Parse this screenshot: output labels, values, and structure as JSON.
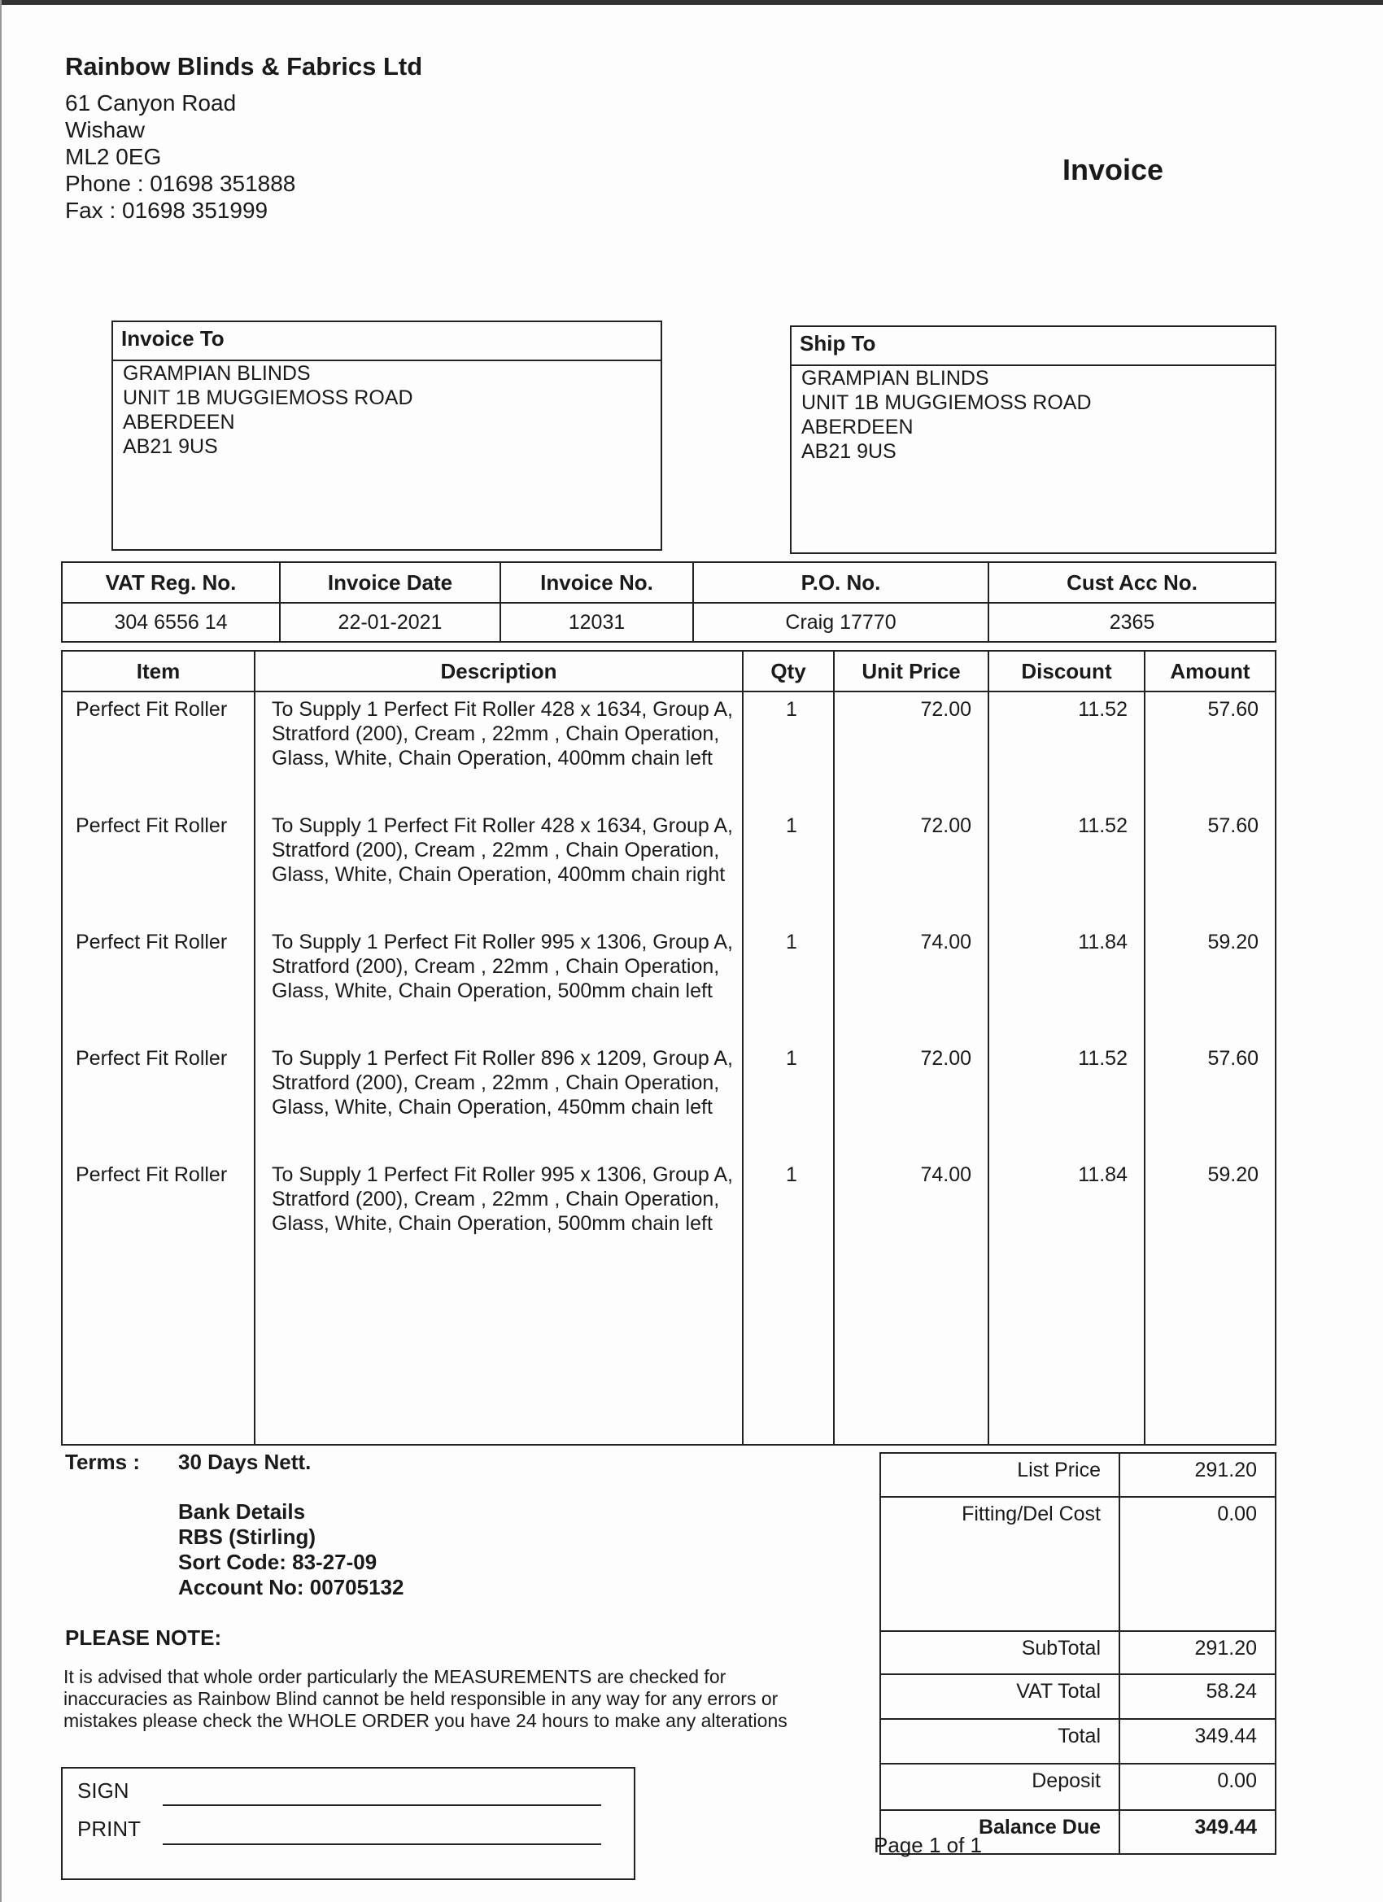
{
  "company": {
    "name": "Rainbow Blinds & Fabrics Ltd",
    "address": [
      "61 Canyon Road",
      "Wishaw",
      "ML2 0EG",
      "Phone : 01698 351888",
      "Fax : 01698 351999"
    ]
  },
  "document_title": "Invoice",
  "invoice_to": {
    "heading": "Invoice To",
    "lines": [
      "GRAMPIAN BLINDS",
      "UNIT 1B MUGGIEMOSS ROAD",
      "ABERDEEN",
      "AB21 9US"
    ]
  },
  "ship_to": {
    "heading": "Ship To",
    "lines": [
      "GRAMPIAN BLINDS",
      "UNIT 1B MUGGIEMOSS ROAD",
      "ABERDEEN",
      "AB21 9US"
    ]
  },
  "info": {
    "headers": [
      "VAT Reg. No.",
      "Invoice Date",
      "Invoice No.",
      "P.O. No.",
      "Cust Acc No."
    ],
    "values": [
      "304 6556 14",
      "22-01-2021",
      "12031",
      "Craig 17770",
      "2365"
    ]
  },
  "items": {
    "headers": [
      "Item",
      "Description",
      "Qty",
      "Unit Price",
      "Discount",
      "Amount"
    ],
    "rows": [
      {
        "item": "Perfect Fit Roller",
        "description": "To Supply 1 Perfect Fit Roller  428 x 1634, Group A, Stratford (200), Cream , 22mm , Chain Operation, Glass, White, Chain Operation, 400mm chain left",
        "qty": "1",
        "unit_price": "72.00",
        "discount": "11.52",
        "amount": "57.60"
      },
      {
        "item": "Perfect Fit Roller",
        "description": "To Supply 1 Perfect Fit Roller  428 x 1634, Group A, Stratford (200), Cream , 22mm , Chain Operation, Glass, White, Chain Operation, 400mm chain right",
        "qty": "1",
        "unit_price": "72.00",
        "discount": "11.52",
        "amount": "57.60"
      },
      {
        "item": "Perfect Fit Roller",
        "description": "To Supply 1 Perfect Fit Roller  995 x 1306, Group A, Stratford (200), Cream , 22mm , Chain Operation, Glass, White, Chain Operation, 500mm chain left",
        "qty": "1",
        "unit_price": "74.00",
        "discount": "11.84",
        "amount": "59.20"
      },
      {
        "item": "Perfect Fit Roller",
        "description": "To Supply 1 Perfect Fit Roller  896 x 1209, Group A, Stratford (200), Cream , 22mm , Chain Operation, Glass, White, Chain Operation, 450mm chain left",
        "qty": "1",
        "unit_price": "72.00",
        "discount": "11.52",
        "amount": "57.60"
      },
      {
        "item": "Perfect Fit Roller",
        "description": "To Supply 1 Perfect Fit Roller  995 x 1306, Group A, Stratford (200), Cream , 22mm , Chain Operation, Glass, White, Chain Operation, 500mm chain left",
        "qty": "1",
        "unit_price": "74.00",
        "discount": "11.84",
        "amount": "59.20"
      }
    ]
  },
  "terms": {
    "label": "Terms :",
    "value": "30 Days Nett.",
    "bank": [
      "Bank Details",
      "RBS (Stirling)",
      "Sort Code: 83-27-09",
      "Account No: 00705132"
    ]
  },
  "note": {
    "heading": "PLEASE NOTE:",
    "lines": [
      "It is advised that whole order particularly the MEASUREMENTS are checked for",
      "inaccuracies as Rainbow Blind cannot be held responsible in any way for any errors or",
      "mistakes please check the WHOLE ORDER you have 24 hours to make any alterations"
    ]
  },
  "signature": {
    "sign_label": "SIGN",
    "print_label": "PRINT"
  },
  "totals": [
    {
      "label": "List Price",
      "value": "291.20"
    },
    {
      "label": "Fitting/Del Cost",
      "value": "0.00"
    },
    {
      "label": "SubTotal",
      "value": "291.20"
    },
    {
      "label": "VAT Total",
      "value": "58.24"
    },
    {
      "label": "Total",
      "value": "349.44"
    },
    {
      "label": "Deposit",
      "value": "0.00"
    },
    {
      "label": "Balance Due",
      "value": "349.44"
    }
  ],
  "page": "Page  1 of  1"
}
